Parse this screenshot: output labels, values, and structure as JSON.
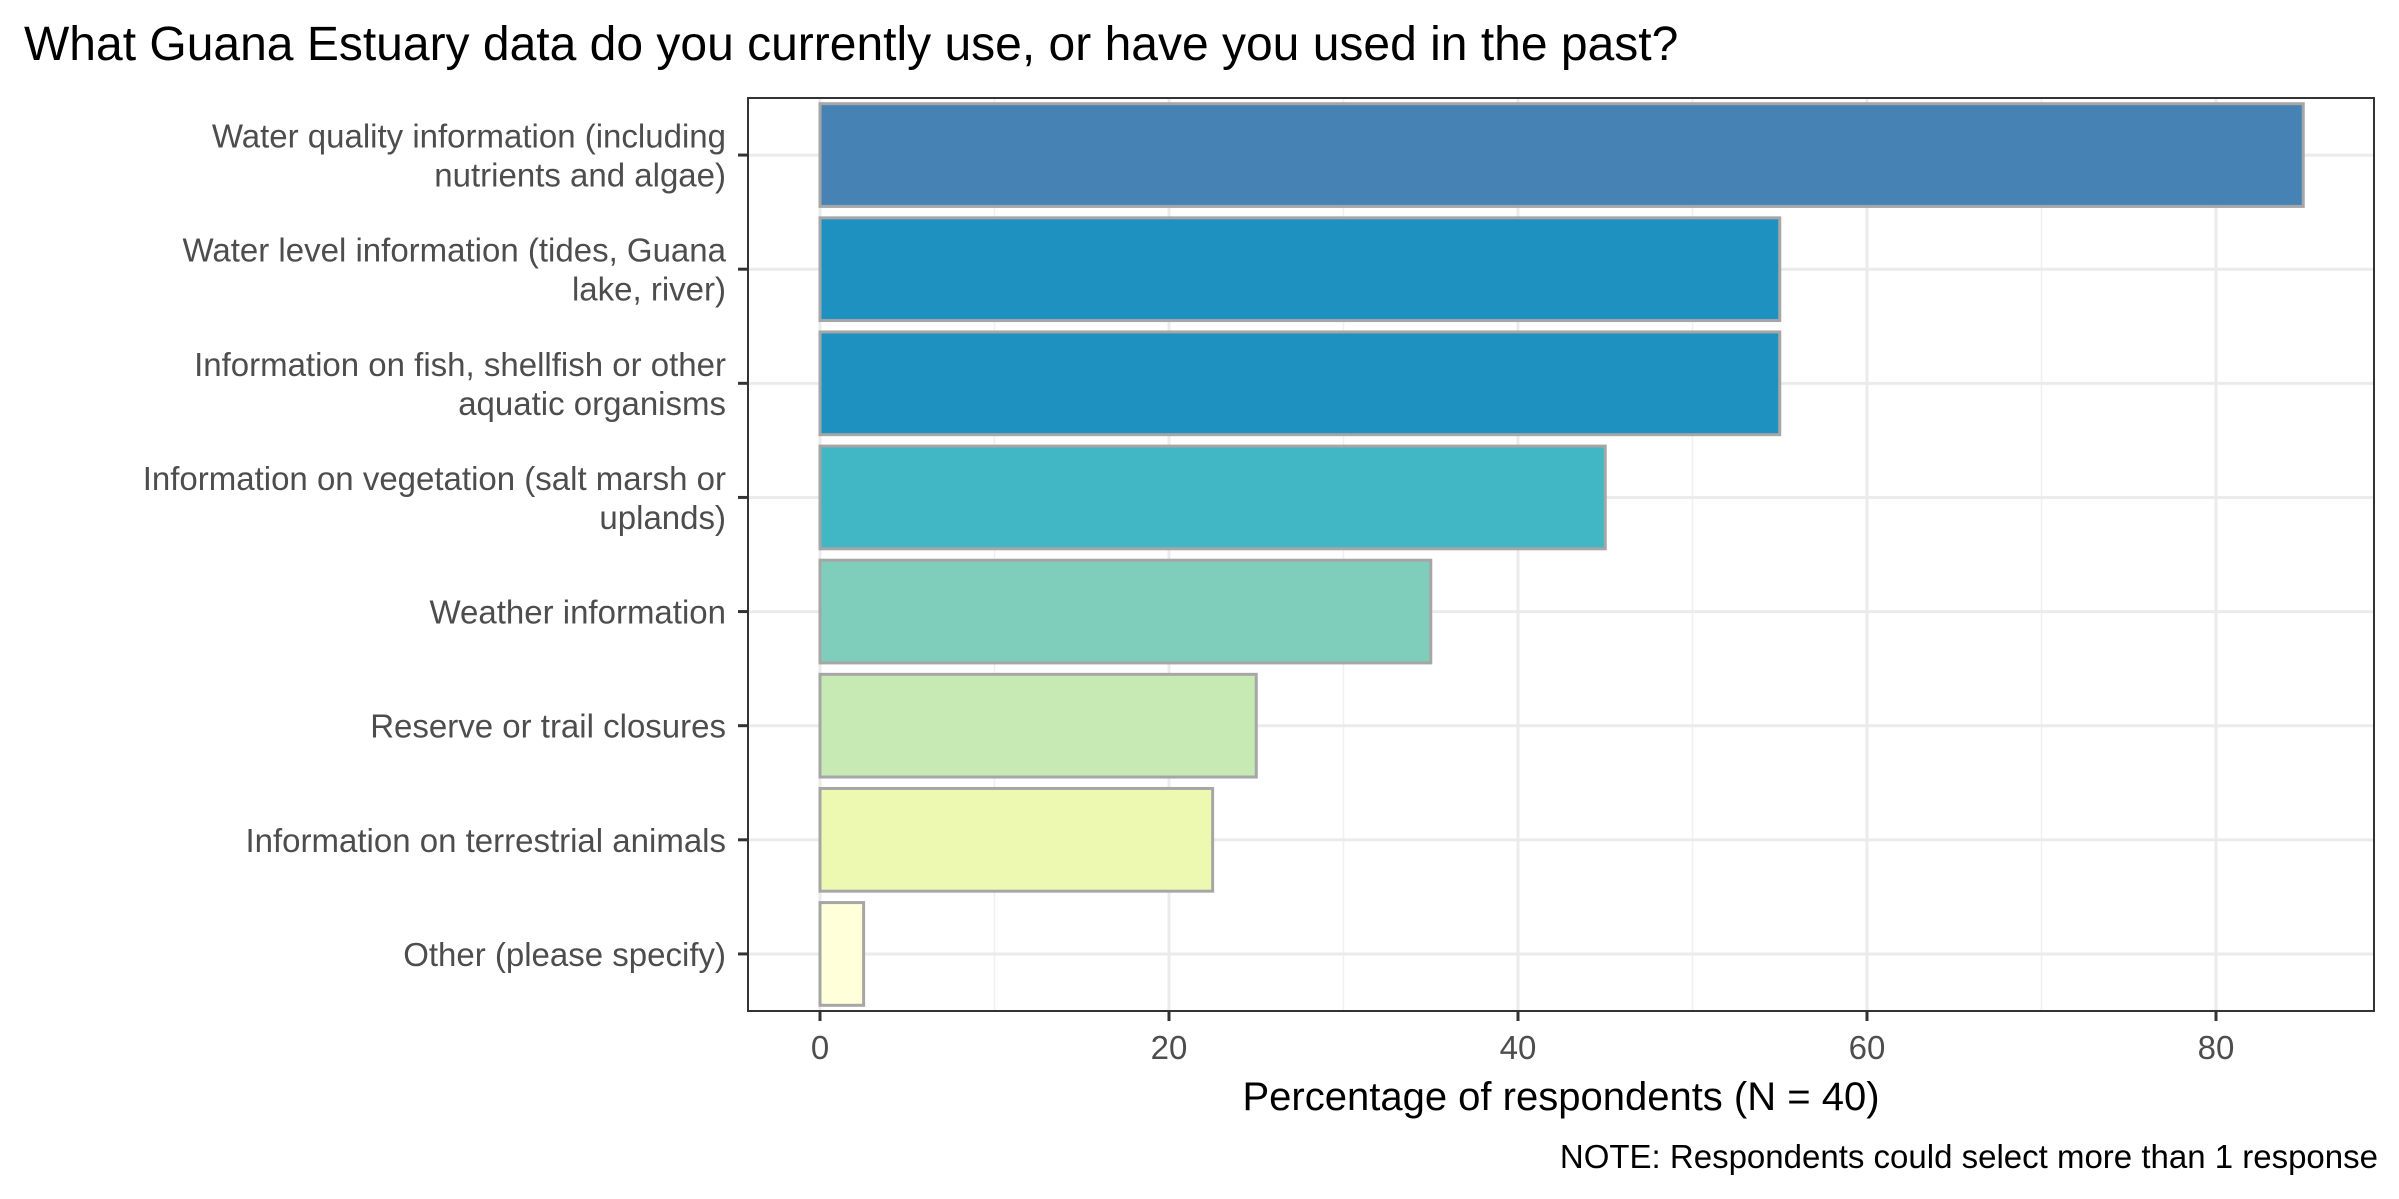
{
  "chart_data": {
    "type": "bar",
    "orientation": "horizontal",
    "title": "What Guana Estuary data do you currently use, or have you used in the past?",
    "xlabel": "Percentage of respondents (N = 40)",
    "ylabel": "",
    "note": "NOTE: Respondents could select more than 1 response",
    "xlim": [
      0,
      89
    ],
    "xticks": [
      0,
      20,
      40,
      60,
      80
    ],
    "x_minor_gridlines": [
      10,
      30,
      50,
      70
    ],
    "grid": true,
    "legend": "none",
    "bar_outline_color": "#a6a6a6",
    "categories": [
      [
        "Water quality information (including",
        "nutrients and algae)"
      ],
      [
        "Water level information (tides, Guana",
        "lake, river)"
      ],
      [
        "Information on fish, shellfish or other",
        "aquatic organisms"
      ],
      [
        "Information on vegetation (salt marsh or",
        "uplands)"
      ],
      [
        "Weather information"
      ],
      [
        "Reserve or trail closures"
      ],
      [
        "Information on terrestrial animals"
      ],
      [
        "Other (please specify)"
      ]
    ],
    "values": [
      85,
      55,
      55,
      45,
      35,
      25,
      22.5,
      2.5
    ],
    "colors": [
      "#4682b4",
      "#1f91c0",
      "#1f91c0",
      "#41b6c4",
      "#7fcdbb",
      "#c7e9b4",
      "#edf8b1",
      "#ffffd9"
    ]
  }
}
